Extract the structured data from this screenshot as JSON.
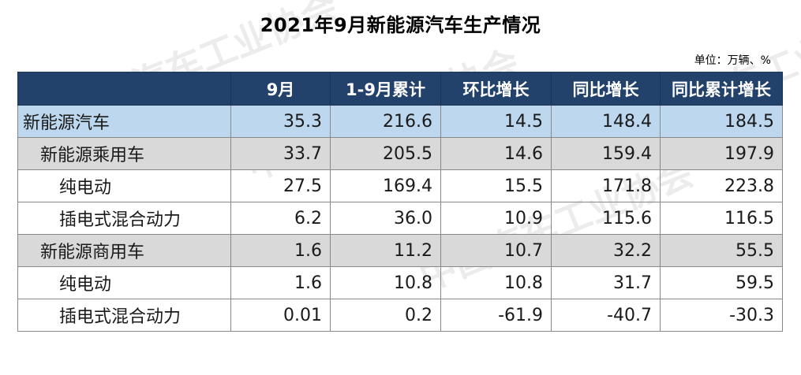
{
  "title": "2021年9月新能源汽车生产情况",
  "unit": "单位：万辆、%",
  "watermark": "中国汽车工业协会",
  "columns": [
    "",
    "9月",
    "1-9月累计",
    "环比增长",
    "同比增长",
    "同比累计增长"
  ],
  "rows": [
    {
      "name": "新能源汽车",
      "level": 0,
      "values": [
        "35.3",
        "216.6",
        "14.5",
        "148.4",
        "184.5"
      ]
    },
    {
      "name": "新能源乘用车",
      "level": 1,
      "values": [
        "33.7",
        "205.5",
        "14.6",
        "159.4",
        "197.9"
      ]
    },
    {
      "name": "纯电动",
      "level": 2,
      "values": [
        "27.5",
        "169.4",
        "15.5",
        "171.8",
        "223.8"
      ]
    },
    {
      "name": "插电式混合动力",
      "level": 2,
      "values": [
        "6.2",
        "36.0",
        "10.9",
        "115.6",
        "116.5"
      ]
    },
    {
      "name": "新能源商用车",
      "level": 1,
      "values": [
        "1.6",
        "11.2",
        "10.7",
        "32.2",
        "55.5"
      ]
    },
    {
      "name": "纯电动",
      "level": 2,
      "values": [
        "1.6",
        "10.8",
        "10.8",
        "31.7",
        "59.5"
      ]
    },
    {
      "name": "插电式混合动力",
      "level": 2,
      "values": [
        "0.01",
        "0.2",
        "-61.9",
        "-40.7",
        "-30.3"
      ]
    }
  ]
}
